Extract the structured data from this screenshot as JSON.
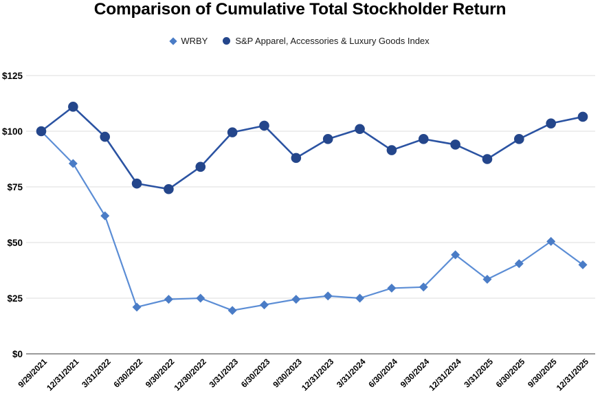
{
  "chart_data": {
    "type": "line",
    "title": "Comparison of Cumulative Total Stockholder Return",
    "categories": [
      "9/29/2021",
      "12/31/2021",
      "3/31/2022",
      "6/30/2022",
      "9/30/2022",
      "12/30/2022",
      "3/31/2023",
      "6/30/2023",
      "9/30/2023",
      "12/31/2023",
      "3/31/2024",
      "6/30/2024",
      "9/30/2024",
      "12/31/2024",
      "3/31/2025",
      "6/30/2025",
      "9/30/2025",
      "12/31/2025"
    ],
    "series": [
      {
        "name": "WRBY",
        "marker": "diamond",
        "line_color": "#5b8dd5",
        "marker_color": "#4a7cc6",
        "values": [
          100,
          85.5,
          62,
          21,
          24.5,
          25,
          19.5,
          22,
          24.5,
          26,
          25,
          29.5,
          30,
          44.5,
          33.5,
          40.5,
          50.5,
          40
        ]
      },
      {
        "name": "S&P Apparel, Accessories & Luxury Goods Index",
        "marker": "circle",
        "line_color": "#2b53a2",
        "marker_color": "#24468b",
        "values": [
          100,
          111,
          97.5,
          76.5,
          74,
          84,
          99.5,
          102.5,
          88,
          96.5,
          101,
          91.5,
          96.5,
          94,
          87.5,
          96.5,
          103.5,
          106.5
        ]
      }
    ],
    "y_axis": {
      "min": 0,
      "max": 125,
      "ticks": [
        {
          "label": "$0",
          "value": 0
        },
        {
          "label": "$25",
          "value": 25
        },
        {
          "label": "$50",
          "value": 50
        },
        {
          "label": "$75",
          "value": 75
        },
        {
          "label": "$100",
          "value": 100
        },
        {
          "label": "$125",
          "value": 125
        }
      ]
    },
    "grid": true,
    "legend_position": "top",
    "colors": {
      "gridline": "#e4e4e4",
      "axis_line": "#999999",
      "text": "#000000"
    }
  }
}
